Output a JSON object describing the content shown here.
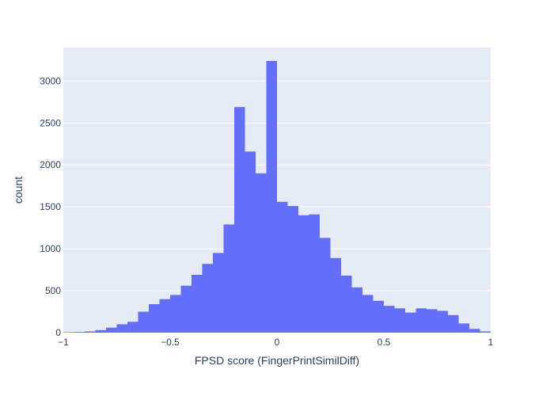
{
  "colors": {
    "plot_background": "#E5ECF6",
    "grid": "#ffffff",
    "bar": "#636efa",
    "text": "#2a3f5f"
  },
  "chart_data": {
    "type": "bar",
    "xlabel": "FPSD score (FingerPrintSimilDiff)",
    "ylabel": "count",
    "xlim": [
      -1,
      1
    ],
    "ylim": [
      0,
      3400
    ],
    "x_ticks": [
      -1,
      -0.5,
      0,
      0.5,
      1
    ],
    "x_tick_labels": [
      "−1",
      "−0.5",
      "0",
      "0.5",
      "1"
    ],
    "y_ticks": [
      0,
      500,
      1000,
      1500,
      2000,
      2500,
      3000
    ],
    "y_tick_labels": [
      "0",
      "500",
      "1000",
      "1500",
      "2000",
      "2500",
      "3000"
    ],
    "grid": true,
    "bin_width": 0.05,
    "bins": [
      {
        "x0": -1.0,
        "x1": -0.95,
        "count": 5
      },
      {
        "x0": -0.95,
        "x1": -0.9,
        "count": 8
      },
      {
        "x0": -0.9,
        "x1": -0.85,
        "count": 15
      },
      {
        "x0": -0.85,
        "x1": -0.8,
        "count": 30
      },
      {
        "x0": -0.8,
        "x1": -0.75,
        "count": 60
      },
      {
        "x0": -0.75,
        "x1": -0.7,
        "count": 100
      },
      {
        "x0": -0.7,
        "x1": -0.65,
        "count": 130
      },
      {
        "x0": -0.65,
        "x1": -0.6,
        "count": 250
      },
      {
        "x0": -0.6,
        "x1": -0.55,
        "count": 340
      },
      {
        "x0": -0.55,
        "x1": -0.5,
        "count": 400
      },
      {
        "x0": -0.5,
        "x1": -0.45,
        "count": 450
      },
      {
        "x0": -0.45,
        "x1": -0.4,
        "count": 560
      },
      {
        "x0": -0.4,
        "x1": -0.35,
        "count": 690
      },
      {
        "x0": -0.35,
        "x1": -0.3,
        "count": 820
      },
      {
        "x0": -0.3,
        "x1": -0.25,
        "count": 950
      },
      {
        "x0": -0.25,
        "x1": -0.2,
        "count": 1290
      },
      {
        "x0": -0.2,
        "x1": -0.15,
        "count": 2690
      },
      {
        "x0": -0.15,
        "x1": -0.1,
        "count": 2160
      },
      {
        "x0": -0.1,
        "x1": -0.05,
        "count": 1900
      },
      {
        "x0": -0.05,
        "x1": 0.0,
        "count": 3240
      },
      {
        "x0": 0.0,
        "x1": 0.05,
        "count": 1560
      },
      {
        "x0": 0.05,
        "x1": 0.1,
        "count": 1510
      },
      {
        "x0": 0.1,
        "x1": 0.15,
        "count": 1400
      },
      {
        "x0": 0.15,
        "x1": 0.2,
        "count": 1410
      },
      {
        "x0": 0.2,
        "x1": 0.25,
        "count": 1130
      },
      {
        "x0": 0.25,
        "x1": 0.3,
        "count": 890
      },
      {
        "x0": 0.3,
        "x1": 0.35,
        "count": 680
      },
      {
        "x0": 0.35,
        "x1": 0.4,
        "count": 540
      },
      {
        "x0": 0.4,
        "x1": 0.45,
        "count": 450
      },
      {
        "x0": 0.45,
        "x1": 0.5,
        "count": 380
      },
      {
        "x0": 0.5,
        "x1": 0.55,
        "count": 320
      },
      {
        "x0": 0.55,
        "x1": 0.6,
        "count": 290
      },
      {
        "x0": 0.6,
        "x1": 0.65,
        "count": 240
      },
      {
        "x0": 0.65,
        "x1": 0.7,
        "count": 290
      },
      {
        "x0": 0.7,
        "x1": 0.75,
        "count": 280
      },
      {
        "x0": 0.75,
        "x1": 0.8,
        "count": 260
      },
      {
        "x0": 0.8,
        "x1": 0.85,
        "count": 210
      },
      {
        "x0": 0.85,
        "x1": 0.9,
        "count": 110
      },
      {
        "x0": 0.9,
        "x1": 0.95,
        "count": 45
      },
      {
        "x0": 0.95,
        "x1": 1.0,
        "count": 15
      }
    ]
  }
}
